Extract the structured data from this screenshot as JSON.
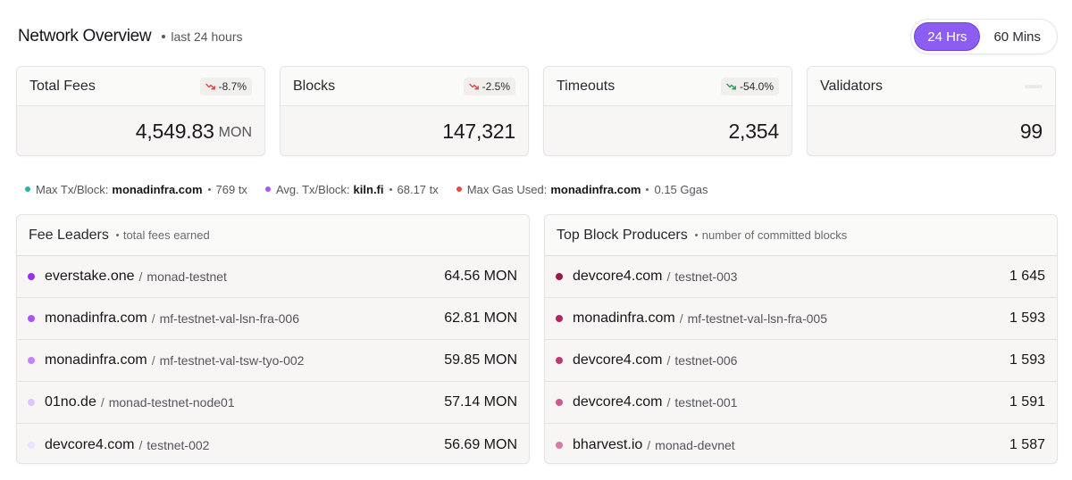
{
  "header": {
    "title": "Network Overview",
    "subtitle": "last 24 hours",
    "ranges": [
      {
        "label": "24 Hrs",
        "active": true
      },
      {
        "label": "60 Mins",
        "active": false
      }
    ]
  },
  "cards": [
    {
      "title": "Total Fees",
      "change": "-8.7%",
      "trend": "down",
      "value": "4,549.83",
      "unit": "MON"
    },
    {
      "title": "Blocks",
      "change": "-2.5%",
      "trend": "down",
      "value": "147,321",
      "unit": ""
    },
    {
      "title": "Timeouts",
      "change": "-54.0%",
      "trend": "down-good",
      "value": "2,354",
      "unit": ""
    },
    {
      "title": "Validators",
      "change": "",
      "trend": "none",
      "value": "99",
      "unit": ""
    }
  ],
  "stats": [
    {
      "label": "Max Tx/Block:",
      "value": "monadinfra.com",
      "extra": "769 tx",
      "color": "#20b7a4"
    },
    {
      "label": "Avg. Tx/Block:",
      "value": "kiln.fi",
      "extra": "68.17 tx",
      "color": "#a855f7"
    },
    {
      "label": "Max Gas Used:",
      "value": "monadinfra.com",
      "extra": "0.15 Ggas",
      "color": "#e5484d"
    }
  ],
  "fee_leaders": {
    "title": "Fee Leaders",
    "subtitle": "total fees earned",
    "rows": [
      {
        "name": "everstake.one",
        "node": "monad-testnet",
        "value": "64.56 MON",
        "color": "#9333ea"
      },
      {
        "name": "monadinfra.com",
        "node": "mf-testnet-val-lsn-fra-006",
        "value": "62.81 MON",
        "color": "#a855f7"
      },
      {
        "name": "monadinfra.com",
        "node": "mf-testnet-val-tsw-tyo-002",
        "value": "59.85 MON",
        "color": "#c084fc"
      },
      {
        "name": "01no.de",
        "node": "monad-testnet-node01",
        "value": "57.14 MON",
        "color": "#dcc6fd"
      },
      {
        "name": "devcore4.com",
        "node": "testnet-002",
        "value": "56.69 MON",
        "color": "#ece3fe"
      }
    ]
  },
  "block_producers": {
    "title": "Top Block Producers",
    "subtitle": "number of committed blocks",
    "rows": [
      {
        "name": "devcore4.com",
        "node": "testnet-003",
        "value": "1 645",
        "color": "#9d174d"
      },
      {
        "name": "monadinfra.com",
        "node": "mf-testnet-val-lsn-fra-005",
        "value": "1 593",
        "color": "#b0245f"
      },
      {
        "name": "devcore4.com",
        "node": "testnet-006",
        "value": "1 593",
        "color": "#be3a72"
      },
      {
        "name": "devcore4.com",
        "node": "testnet-001",
        "value": "1 591",
        "color": "#cd5a8d"
      },
      {
        "name": "bharvest.io",
        "node": "monad-devnet",
        "value": "1 587",
        "color": "#d97aa6"
      }
    ]
  }
}
